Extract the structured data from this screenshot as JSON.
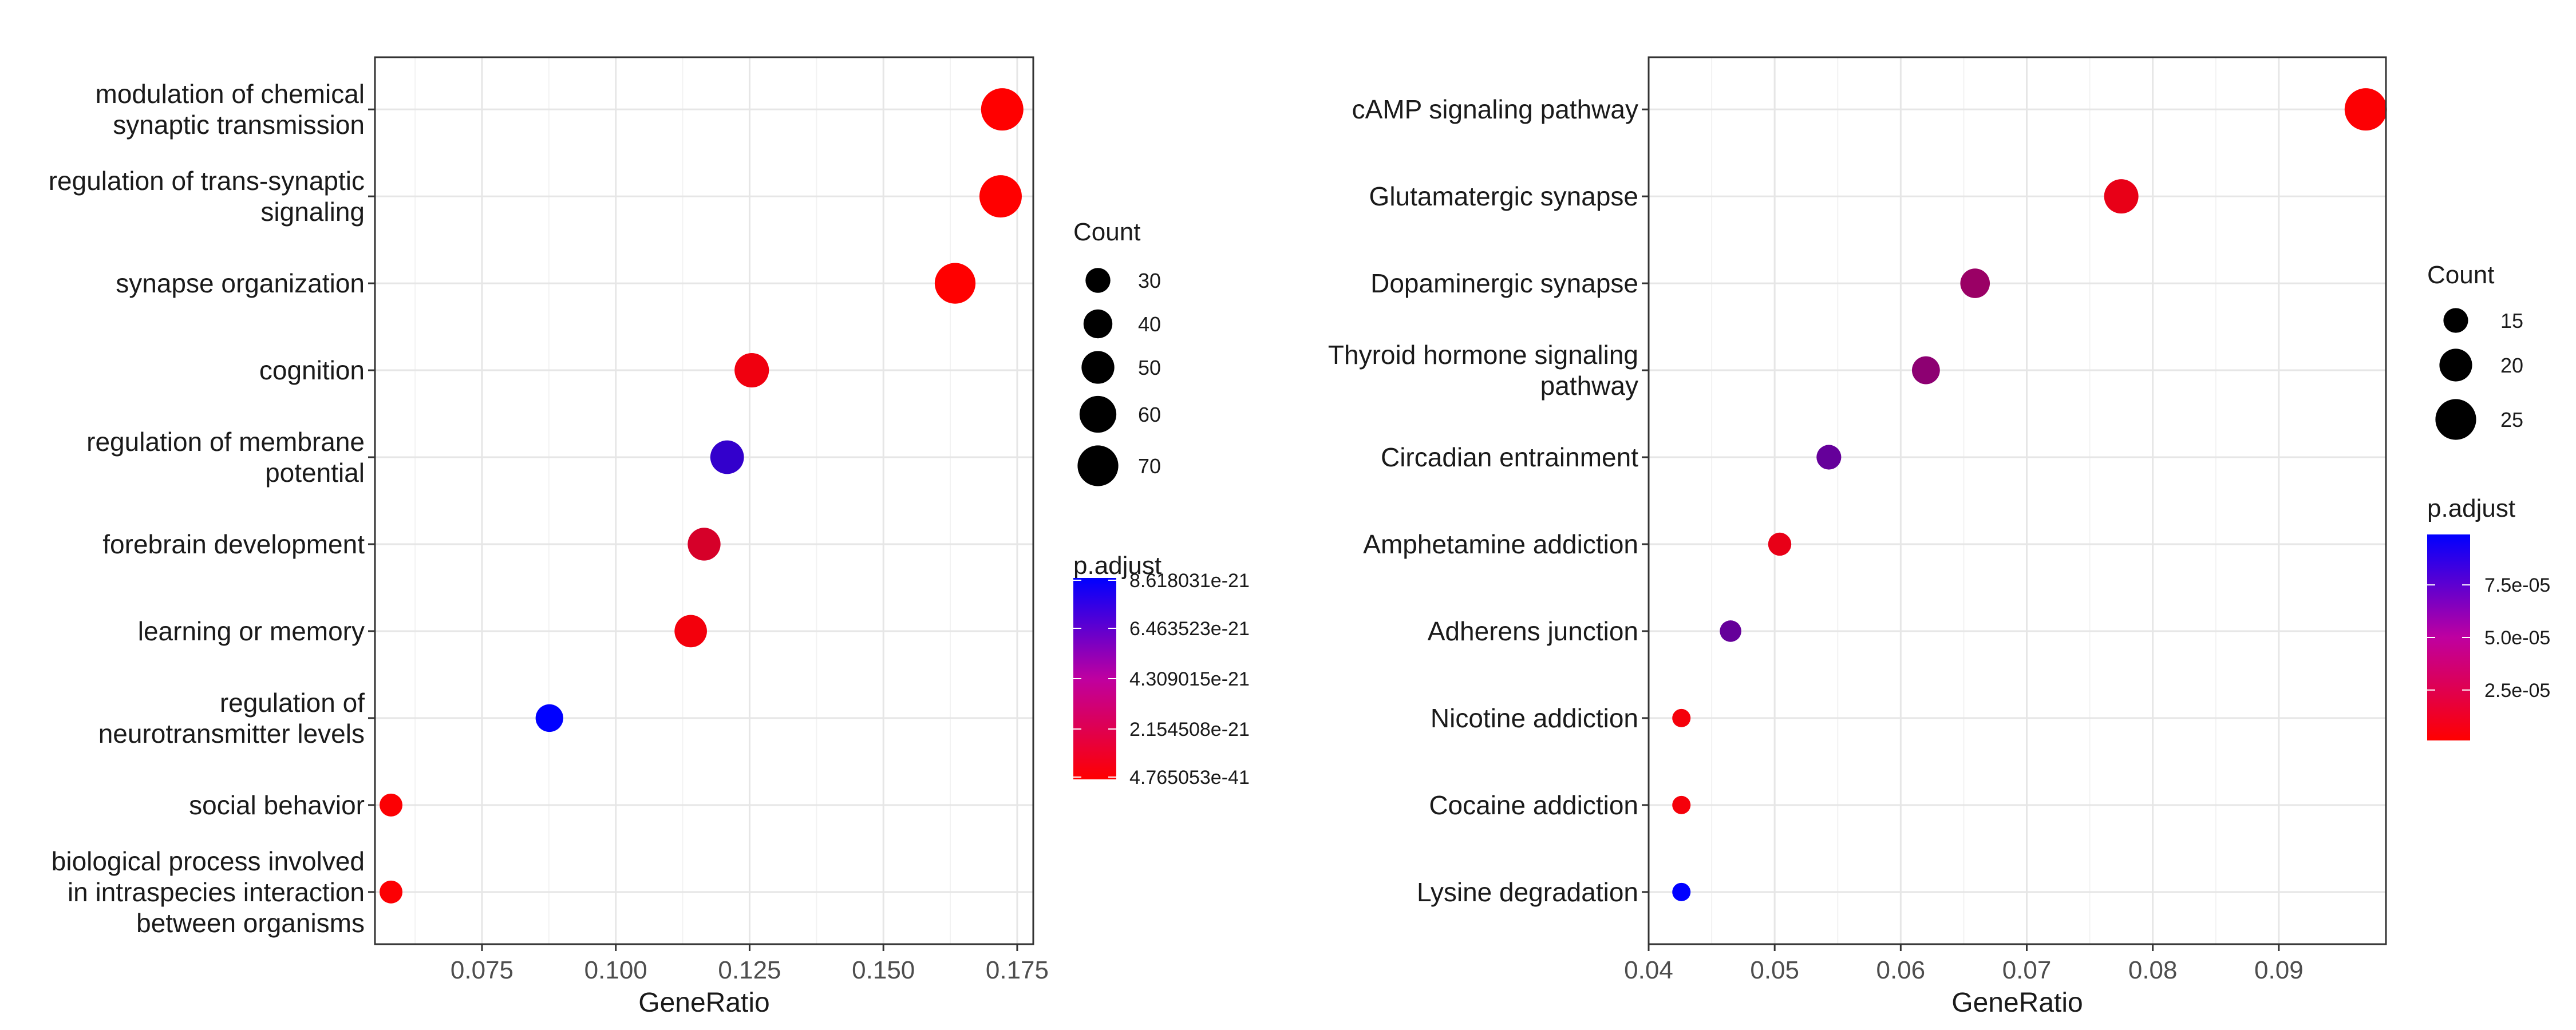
{
  "chart_data": [
    {
      "type": "scatter",
      "xlabel": "GeneRatio",
      "ylabel": "",
      "xlim": [
        0.055,
        0.178
      ],
      "xticks": [
        "0.075",
        "0.100",
        "0.125",
        "0.150",
        "0.175"
      ],
      "xtick_values": [
        0.075,
        0.1,
        0.125,
        0.15,
        0.175
      ],
      "grid": true,
      "categories": [
        {
          "lines": [
            "modulation of chemical",
            "synaptic transmission"
          ]
        },
        {
          "lines": [
            "regulation of trans-synaptic",
            "signaling"
          ]
        },
        {
          "lines": [
            "synapse organization"
          ]
        },
        {
          "lines": [
            "cognition"
          ]
        },
        {
          "lines": [
            "regulation of membrane",
            "potential"
          ]
        },
        {
          "lines": [
            "forebrain development"
          ]
        },
        {
          "lines": [
            "learning or memory"
          ]
        },
        {
          "lines": [
            "regulation of",
            "neurotransmitter levels"
          ]
        },
        {
          "lines": [
            "social behavior"
          ]
        },
        {
          "lines": [
            "biological process involved",
            "in intraspecies interaction",
            "between organisms"
          ]
        }
      ],
      "points": [
        {
          "x": 0.1722,
          "count": 74,
          "p": 4.8e-41
        },
        {
          "x": 0.1719,
          "count": 74,
          "p": 4.8e-41
        },
        {
          "x": 0.1634,
          "count": 70,
          "p": 4.8e-41
        },
        {
          "x": 0.1254,
          "count": 54,
          "p": 5e-22
        },
        {
          "x": 0.1208,
          "count": 52,
          "p": 6.9e-21
        },
        {
          "x": 0.1165,
          "count": 50,
          "p": 1.4e-21
        },
        {
          "x": 0.114,
          "count": 49,
          "p": 4e-22
        },
        {
          "x": 0.0876,
          "count": 37,
          "p": 8.618031e-21
        },
        {
          "x": 0.058,
          "count": 25,
          "p": 1e-22
        },
        {
          "x": 0.058,
          "count": 25,
          "p": 1e-22
        }
      ],
      "size_legend": {
        "title": "Count",
        "values": [
          30,
          40,
          50,
          60,
          70
        ],
        "labels": [
          "30",
          "40",
          "50",
          "60",
          "70"
        ],
        "range": [
          25,
          74
        ]
      },
      "color_legend": {
        "title": "p.adjust",
        "labels": [
          "8.618031e-21",
          "6.463523e-21",
          "4.309015e-21",
          "2.154508e-21",
          "4.765053e-41"
        ],
        "values": [
          8.618031e-21,
          6.463523e-21,
          4.309015e-21,
          2.154508e-21,
          4.765053e-41
        ],
        "min": 4.765053e-41,
        "max": 8.618031e-21,
        "low_color": "#FF0000",
        "high_color": "#0000FF"
      }
    },
    {
      "type": "scatter",
      "xlabel": "GeneRatio",
      "ylabel": "",
      "xlim": [
        0.04,
        0.0985
      ],
      "xticks": [
        "0.04",
        "0.05",
        "0.06",
        "0.07",
        "0.08",
        "0.09"
      ],
      "xtick_values": [
        0.04,
        0.05,
        0.06,
        0.07,
        0.08,
        0.09
      ],
      "grid": true,
      "categories": [
        {
          "lines": [
            "cAMP signaling pathway"
          ]
        },
        {
          "lines": [
            "Glutamatergic synapse"
          ]
        },
        {
          "lines": [
            "Dopaminergic synapse"
          ]
        },
        {
          "lines": [
            "Thyroid hormone signaling",
            "pathway"
          ]
        },
        {
          "lines": [
            "Circadian entrainment"
          ]
        },
        {
          "lines": [
            "Amphetamine addiction"
          ]
        },
        {
          "lines": [
            "Adherens junction"
          ]
        },
        {
          "lines": [
            "Nicotine addiction"
          ]
        },
        {
          "lines": [
            "Cocaine addiction"
          ]
        },
        {
          "lines": [
            "Lysine degradation"
          ]
        }
      ],
      "points": [
        {
          "x": 0.0969,
          "count": 26,
          "p": 2e-06
        },
        {
          "x": 0.0775,
          "count": 21,
          "p": 1e-05
        },
        {
          "x": 0.0659,
          "count": 18,
          "p": 4e-05
        },
        {
          "x": 0.062,
          "count": 17,
          "p": 4.5e-05
        },
        {
          "x": 0.0543,
          "count": 15,
          "p": 6e-05
        },
        {
          "x": 0.0504,
          "count": 14,
          "p": 1e-05
        },
        {
          "x": 0.0465,
          "count": 13,
          "p": 6e-05
        },
        {
          "x": 0.0426,
          "count": 11,
          "p": 5e-06
        },
        {
          "x": 0.0426,
          "count": 11,
          "p": 5e-06
        },
        {
          "x": 0.0426,
          "count": 11,
          "p": 9.9e-05
        }
      ],
      "size_legend": {
        "title": "Count",
        "values": [
          15,
          20,
          25
        ],
        "labels": [
          "15",
          "20",
          "25"
        ],
        "range": [
          11,
          26
        ]
      },
      "color_legend": {
        "title": "p.adjust",
        "labels": [
          "7.5e-05",
          "5.0e-05",
          "2.5e-05"
        ],
        "values": [
          7.5e-05,
          5e-05,
          2.5e-05
        ],
        "min": 1e-06,
        "max": 9.9e-05,
        "low_color": "#FF0000",
        "high_color": "#0000FF"
      }
    }
  ]
}
